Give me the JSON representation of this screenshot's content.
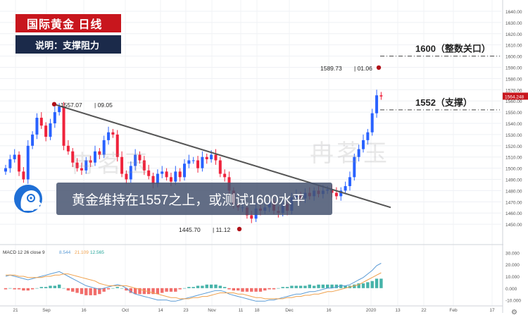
{
  "header": {
    "title": "国际黄金 日线",
    "subtitle": "说明：支撑阻力"
  },
  "caption": "黄金维持在1557之上，或测试1600水平",
  "watermark": "冉茗玉",
  "colors": {
    "up": "#2962ff",
    "down": "#ef233c",
    "trend": "#555555",
    "macd": "#5b9bd5",
    "signal": "#f0a04b",
    "hist_up": "#26a69a",
    "hist_down": "#ef5350"
  },
  "icons": {
    "logo": "head-logo-icon",
    "settings": "gear-icon"
  },
  "chart_data": {
    "type": "candlestick",
    "instrument": "国际黄金",
    "timeframe": "日线",
    "ylim": [
      1435,
      1645
    ],
    "y_ticks": [
      "1640.00",
      "1630.00",
      "1620.00",
      "1610.00",
      "1600.00",
      "1590.00",
      "1580.00",
      "1570.00",
      "1560.00",
      "1550.00",
      "1540.00",
      "1530.00",
      "1520.00",
      "1510.00",
      "1500.00",
      "1490.00",
      "1480.00",
      "1470.00",
      "1460.00",
      "1450.00"
    ],
    "x_ticks": [
      "21",
      "Sep",
      "16",
      "Oct",
      "14",
      "23",
      "Nov",
      "11",
      "18",
      "Dec",
      "16",
      "2020",
      "13",
      "22",
      "Feb",
      "17"
    ],
    "last_price": "1564.248",
    "close": [
      1500,
      1508,
      1512,
      1497,
      1490,
      1520,
      1530,
      1545,
      1538,
      1528,
      1540,
      1550,
      1555,
      1520,
      1515,
      1505,
      1500,
      1498,
      1507,
      1505,
      1515,
      1512,
      1525,
      1532,
      1530,
      1510,
      1495,
      1490,
      1502,
      1512,
      1507,
      1498,
      1493,
      1486,
      1495,
      1497,
      1492,
      1488,
      1497,
      1492,
      1504,
      1507,
      1507,
      1500,
      1510,
      1508,
      1512,
      1507,
      1495,
      1492,
      1480,
      1468,
      1465,
      1465,
      1458,
      1455,
      1464,
      1462,
      1465,
      1470,
      1462,
      1460,
      1468,
      1462,
      1474,
      1476,
      1473,
      1478,
      1475,
      1480,
      1477,
      1480,
      1481,
      1478,
      1475,
      1480,
      1484,
      1492,
      1510,
      1517,
      1525,
      1532,
      1549,
      1565,
      1564
    ],
    "annotations": [
      {
        "label": "1557.07",
        "sub": "09.05"
      },
      {
        "label": "1589.73",
        "sub": "01.06"
      },
      {
        "label": "1445.70",
        "sub": "11.12"
      },
      {
        "label": "1600（整数关口）",
        "level": 1600
      },
      {
        "label": "1552（支撑）",
        "level": 1552
      }
    ],
    "trendline": [
      {
        "date": "09.05",
        "price": 1557
      },
      {
        "date": "01.13",
        "price": 1468
      }
    ],
    "macd": {
      "label": "MACD 12 26 close 9",
      "values": [
        "8.544",
        "21.109",
        "12.565"
      ],
      "y_ticks": [
        "30.000",
        "20.000",
        "10.000",
        "0.000",
        "-10.000"
      ],
      "ylim": [
        -15,
        35
      ],
      "macd": [
        10,
        11,
        10,
        9,
        8,
        7,
        8,
        9,
        10,
        11,
        12,
        13,
        14,
        12,
        10,
        8,
        6,
        4,
        2,
        1,
        0,
        -1,
        0,
        1,
        2,
        3,
        2,
        0,
        -3,
        -5,
        -6,
        -7,
        -8,
        -9,
        -10,
        -10,
        -10,
        -11,
        -11,
        -10,
        -9,
        -8,
        -7,
        -6,
        -5,
        -4,
        -3,
        -2,
        -2,
        -3,
        -5,
        -6,
        -7,
        -8,
        -9,
        -10,
        -11,
        -11,
        -11,
        -10,
        -10,
        -9,
        -8,
        -7,
        -6,
        -5,
        -5,
        -4,
        -3,
        -3,
        -2,
        -1,
        0,
        0,
        1,
        2,
        2,
        3,
        5,
        7,
        9,
        12,
        15,
        19,
        21
      ],
      "signal": [
        11,
        11,
        11,
        10,
        10,
        9,
        9,
        9,
        9,
        10,
        10,
        11,
        11,
        12,
        12,
        11,
        10,
        9,
        8,
        7,
        6,
        4,
        3,
        2,
        2,
        2,
        2,
        2,
        1,
        0,
        -1,
        -2,
        -3,
        -4,
        -5,
        -6,
        -7,
        -8,
        -8,
        -9,
        -9,
        -9,
        -8,
        -8,
        -7,
        -7,
        -6,
        -5,
        -4,
        -4,
        -4,
        -4,
        -5,
        -5,
        -6,
        -7,
        -8,
        -8,
        -9,
        -9,
        -9,
        -9,
        -9,
        -8,
        -8,
        -7,
        -7,
        -6,
        -6,
        -5,
        -5,
        -4,
        -3,
        -3,
        -2,
        -1,
        0,
        1,
        2,
        3,
        5,
        7,
        9,
        11,
        13
      ]
    }
  }
}
